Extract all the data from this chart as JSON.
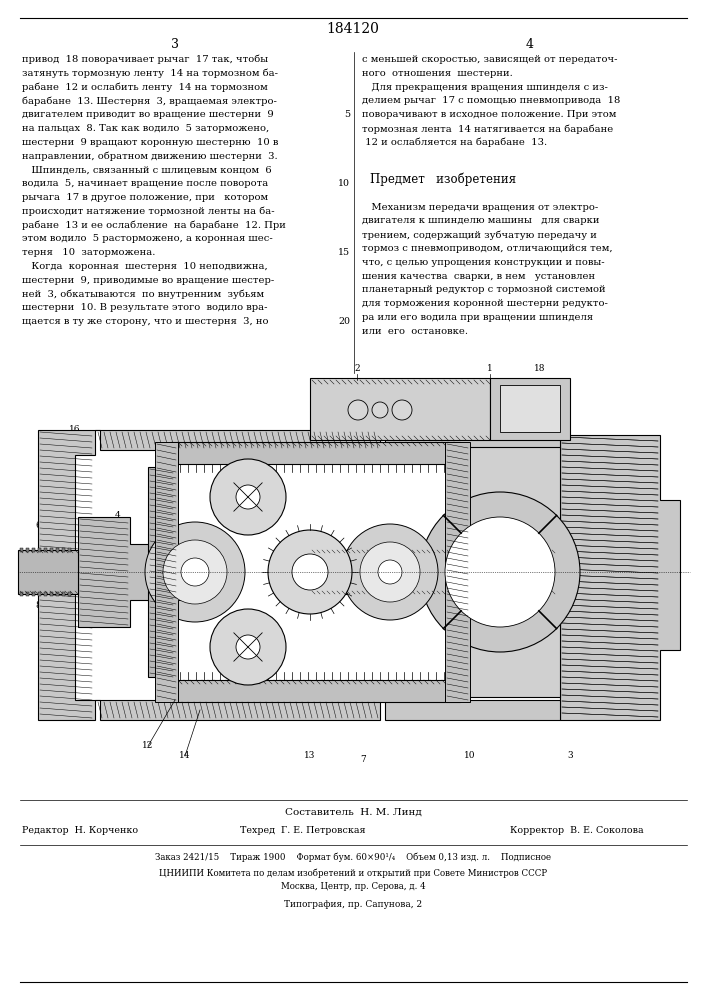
{
  "patent_number": "184120",
  "page_left": "3",
  "page_right": "4",
  "col1_lines": [
    "привод  18 поворачивает рычаг  17 так, чтобы",
    "затянуть тормозную ленту  14 на тормозном ба-",
    "рабане  12 и ослабить ленту  14 на тормозном",
    "барабане  13. Шестерня  3, вращаемая электро-",
    "двигателем приводит во вращение шестерни  9",
    "на пальцах  8. Так как водило  5 заторможено,",
    "шестерни  9 вращают коронную шестерню  10 в",
    "направлении, обратном движению шестерни  3.",
    "   Шпиндель, связанный с шлицевым концом  6",
    "водила  5, начинает вращение после поворота",
    "рычага  17 в другое положение, при   котором",
    "происходит натяжение тормозной ленты на ба-",
    "рабане  13 и ее ослабление  на барабане  12. При",
    "этом водило  5 расторможено, а коронная шес-",
    "терня   10  заторможена.",
    "   Когда  коронная  шестерня  10 неподвижна,",
    "шестерни  9, приводимые во вращение шестер-",
    "ней  3, обкатываются  по внутренним  зубьям",
    "шестерни  10. В результате этого  водило вра-",
    "щается в ту же сторону, что и шестерня  3, но"
  ],
  "col2_lines_top": [
    "с меньшей скоростью, зависящей от передаточ-",
    "ного  отношения  шестерни.",
    "   Для прекращения вращения шпинделя с из-",
    "делием рычаг  17 с помощью пневмопривода  18",
    "поворачивают в исходное положение. При этом",
    "тормозная лента  14 натягивается на барабане",
    " 12 и ослабляется на барабане  13."
  ],
  "predmet_title": "Предмет   изобретения",
  "predmet_lines": [
    "   Механизм передачи вращения от электро-",
    "двигателя к шпинделю машины   для сварки",
    "трением, содержащий зубчатую передачу и",
    "тормоз с пневмоприводом, отличающийся тем,",
    "что, с целью упрощения конструкции и повы-",
    "шения качества  сварки, в нем   установлен",
    "планетарный редуктор с тормозной системой",
    "для торможения коронной шестерни редукто-",
    "ра или его водила при вращении шпинделя",
    "или  его  остановке."
  ],
  "line_nums": [
    "5",
    "10",
    "15",
    "20"
  ],
  "line_num_rows": [
    5,
    10,
    15,
    20
  ],
  "footer_composer": "Составитель  Н. М. Линд",
  "footer_editor": "Редактор  Н. Корченко",
  "footer_tech": "Техред  Г. Е. Петровская",
  "footer_corrector": "Корректор  В. Е. Соколова",
  "footer_info": "Заказ 2421/15    Тираж 1900    Формат бум. 60×90¹/₄    Объем 0,13 изд. л.    Подписное",
  "footer_org": "ЦНИИПИ Комитета по делам изобретений и открытий при Совете Министров СССР",
  "footer_addr": "Москва, Центр, пр. Серова, д. 4",
  "footer_print": "Типография, пр. Сапунова, 2",
  "bg": "#ffffff"
}
